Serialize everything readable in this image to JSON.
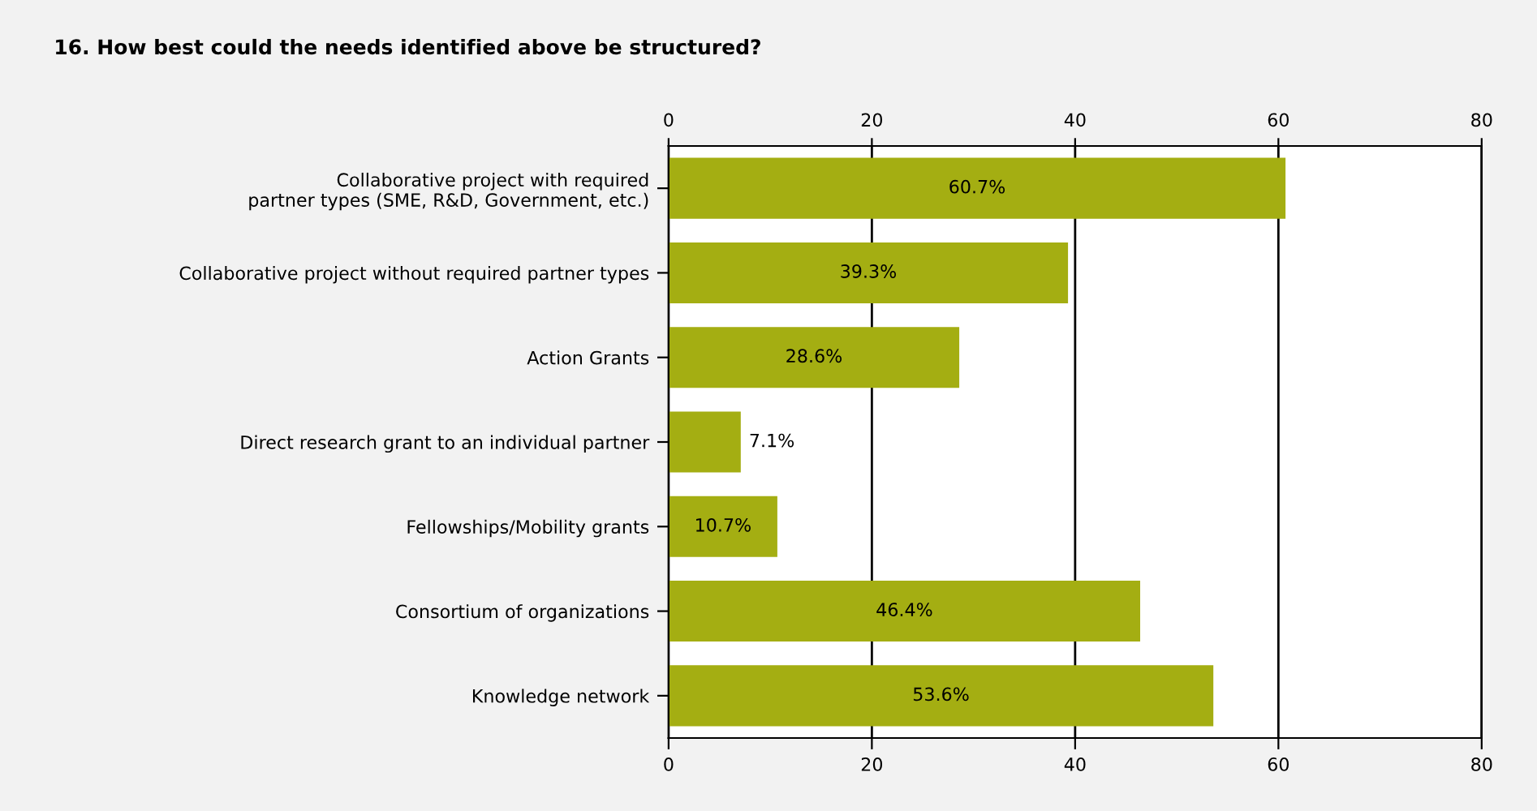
{
  "chart_data": {
    "type": "bar",
    "orientation": "horizontal",
    "title": "16. How best could the needs identified above be structured?",
    "categories": [
      "Collaborative project with required\npartner types (SME, R&D, Government, etc.)",
      "Collaborative project without required partner types",
      "Action Grants",
      "Direct research grant to an individual partner",
      "Fellowships/Mobility grants",
      "Consortium of organizations",
      "Knowledge network"
    ],
    "values": [
      60.7,
      39.3,
      28.6,
      7.1,
      10.7,
      46.4,
      53.6
    ],
    "value_labels": [
      "60.7%",
      "39.3%",
      "28.6%",
      "7.1%",
      "10.7%",
      "46.4%",
      "53.6%"
    ],
    "color": "#a4ae12",
    "xlim": [
      0,
      80
    ],
    "xticks": [
      0,
      20,
      40,
      60,
      80
    ],
    "x2lim": [
      0,
      80
    ],
    "x2ticks": [
      0,
      20,
      40,
      60,
      80
    ],
    "grid": "x",
    "legend": false
  }
}
